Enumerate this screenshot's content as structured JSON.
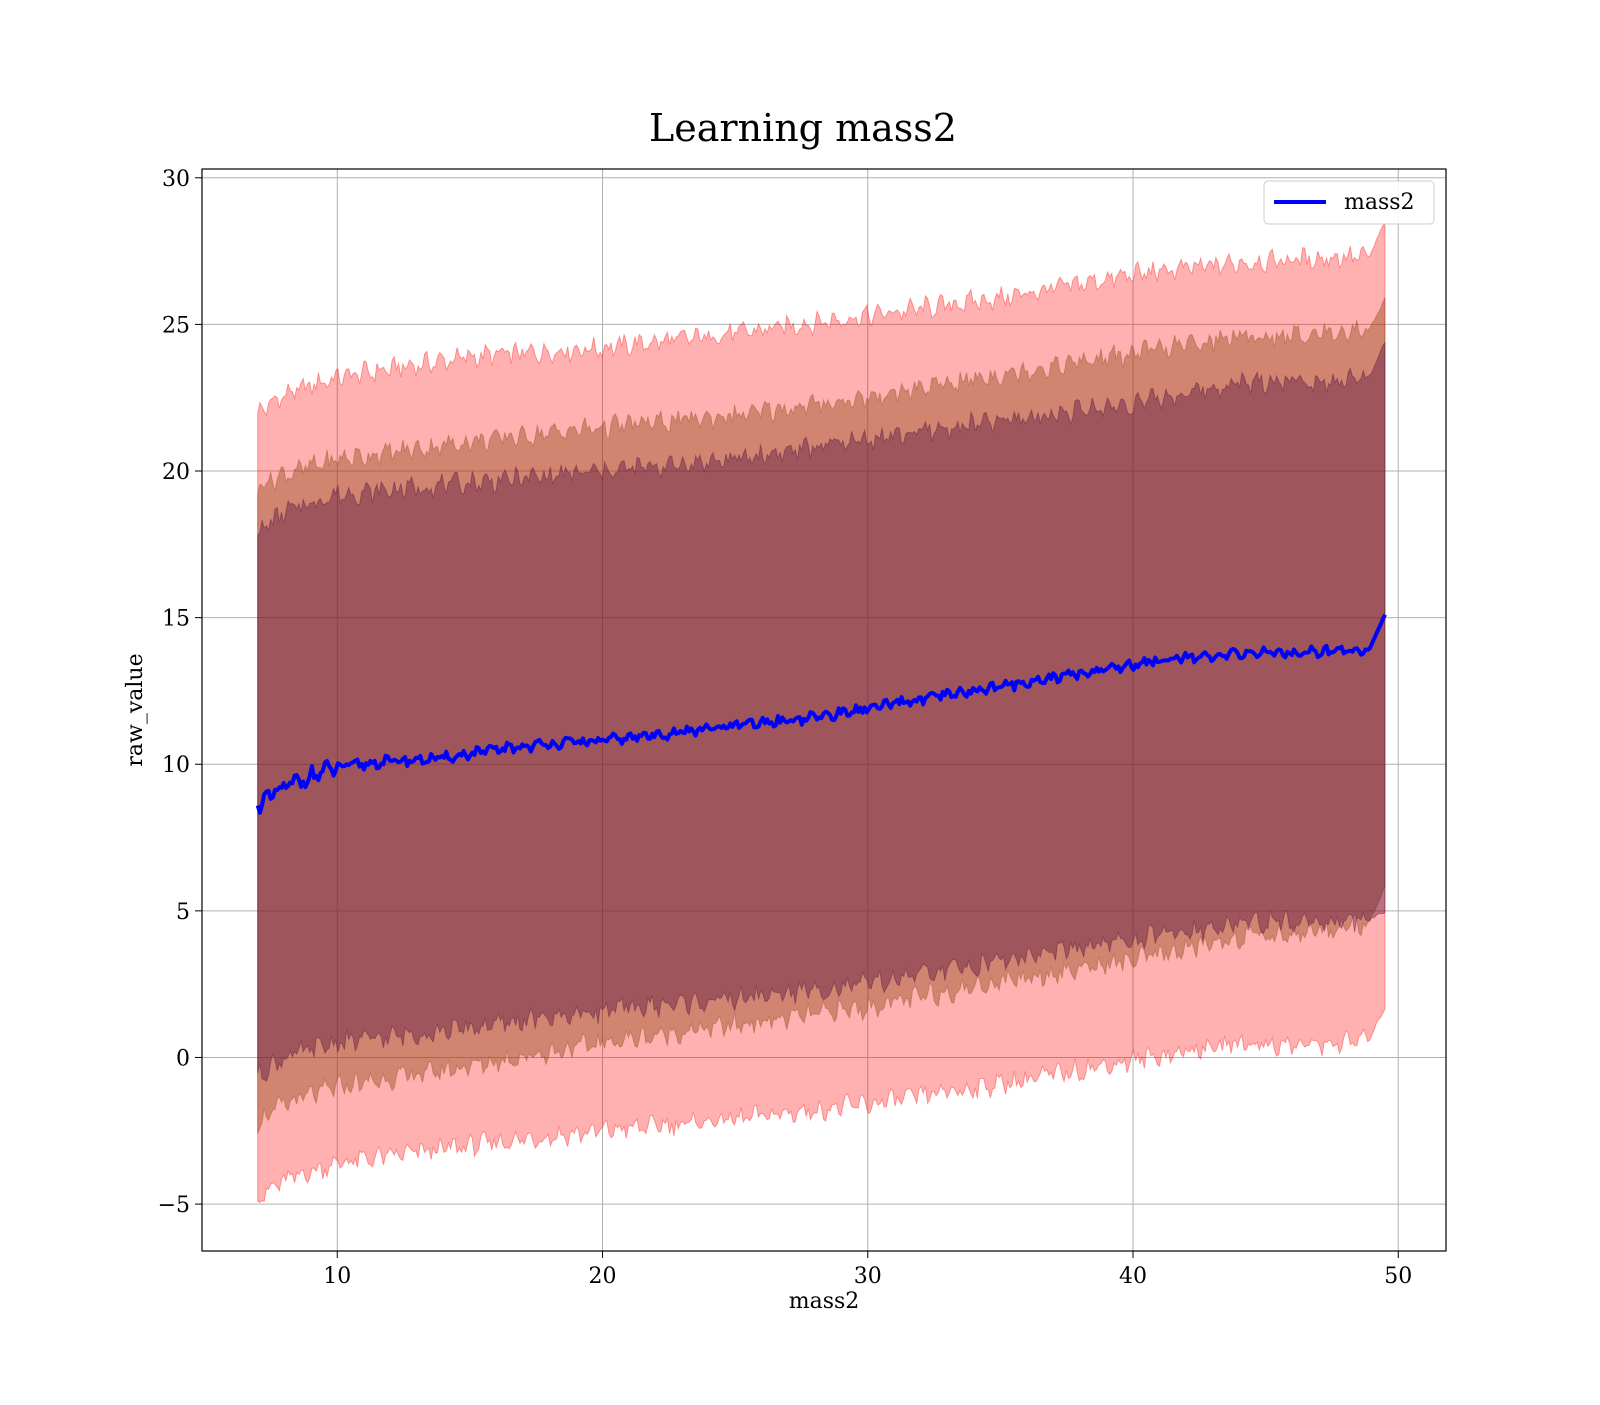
{
  "chart_data": {
    "type": "area",
    "title": "Learning mass2",
    "xlabel": "mass2",
    "ylabel": "raw_value",
    "xlim": [
      4.9,
      51.8
    ],
    "ylim": [
      -6.6,
      30.3
    ],
    "xticks": [
      10,
      20,
      30,
      40,
      50
    ],
    "yticks": [
      -5,
      0,
      5,
      10,
      15,
      20,
      25,
      30
    ],
    "xtick_labels": [
      "10",
      "20",
      "30",
      "40",
      "50"
    ],
    "ytick_labels": [
      "−5",
      "0",
      "5",
      "10",
      "15",
      "20",
      "25",
      "30"
    ],
    "grid": true,
    "legend": {
      "position": "top-right",
      "entries": [
        "mass2"
      ]
    },
    "x_start": 7.0,
    "x_end": 49.5,
    "colors": {
      "line": "#0000ff",
      "band_outer": "#ff0000",
      "band_middle": "#8b4513",
      "band_inner": "#4b0a3a",
      "grid": "#b0b0b0"
    },
    "series": [
      {
        "name": "mass2",
        "kind": "line",
        "x": [
          7,
          8,
          9,
          10,
          12,
          14,
          16,
          18,
          20,
          22,
          24,
          26,
          28,
          30,
          32,
          34,
          36,
          38,
          40,
          42,
          43,
          44,
          46,
          48,
          48.9,
          49.5
        ],
        "y": [
          8.6,
          9.2,
          9.6,
          9.9,
          10.1,
          10.2,
          10.5,
          10.7,
          10.8,
          11.0,
          11.2,
          11.4,
          11.6,
          11.9,
          12.2,
          12.5,
          12.8,
          13.1,
          13.4,
          13.7,
          13.6,
          13.8,
          13.8,
          13.9,
          13.9,
          15.1
        ]
      }
    ],
    "bands": [
      {
        "kind": "outer",
        "x": [
          7,
          8,
          10,
          15,
          20,
          25,
          30,
          35,
          40,
          44,
          46,
          48,
          48.9,
          49.5
        ],
        "lower": [
          -4.8,
          -4.2,
          -3.6,
          -3.0,
          -2.5,
          -2.1,
          -1.6,
          -0.9,
          -0.1,
          0.5,
          0.4,
          0.5,
          0.6,
          1.7
        ],
        "upper": [
          22.0,
          22.6,
          23.2,
          23.9,
          24.2,
          24.7,
          25.3,
          25.9,
          26.7,
          27.1,
          27.2,
          27.3,
          27.3,
          28.5
        ]
      },
      {
        "kind": "middle",
        "x": [
          7,
          8,
          10,
          15,
          20,
          25,
          30,
          35,
          40,
          44,
          46,
          48,
          48.9,
          49.5
        ],
        "lower": [
          -2.2,
          -1.6,
          -1.0,
          -0.3,
          0.5,
          1.1,
          1.7,
          2.6,
          3.3,
          4.1,
          4.2,
          4.5,
          4.6,
          5.8
        ],
        "upper": [
          19.5,
          19.9,
          20.4,
          21.0,
          21.5,
          21.9,
          22.5,
          23.3,
          24.0,
          24.6,
          24.6,
          24.8,
          24.8,
          25.9
        ]
      },
      {
        "kind": "inner",
        "x": [
          7,
          8,
          10,
          15,
          20,
          25,
          30,
          35,
          40,
          44,
          46,
          48,
          48.9,
          49.5
        ],
        "lower": [
          -0.6,
          0.0,
          0.5,
          1.0,
          1.6,
          2.0,
          2.5,
          3.3,
          4.0,
          4.6,
          4.6,
          4.7,
          4.7,
          5.0
        ],
        "upper": [
          17.9,
          18.6,
          19.2,
          19.6,
          20.0,
          20.4,
          21.1,
          21.7,
          22.3,
          23.0,
          23.1,
          23.1,
          23.2,
          24.4
        ]
      }
    ]
  }
}
